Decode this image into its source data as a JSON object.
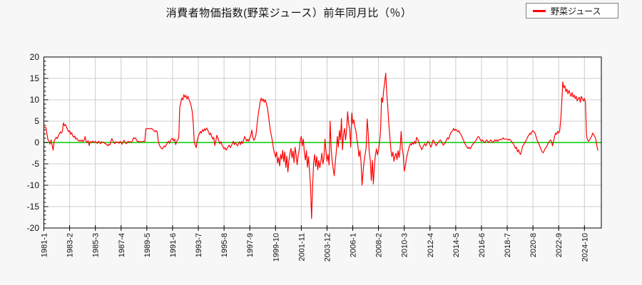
{
  "title": "消費者物価指数(野菜ジュース）前年同月比（％）",
  "legend": {
    "label": "野菜ジュース"
  },
  "colors": {
    "series": "#ff0000",
    "zero_line": "#00cc00",
    "grid": "#cccccc",
    "plot_bg": "#ffffff",
    "page_bg": "#f7f7f7",
    "border": "#000000",
    "legend_border": "#808080",
    "text": "#111111"
  },
  "chart_data": {
    "type": "line",
    "title": "消費者物価指数(野菜ジュース）前年同月比（％）",
    "series_name": "野菜ジュース",
    "unit": "%",
    "x_start": "1981-1",
    "x_end": "2025-11",
    "x_frequency": "monthly",
    "x_tick_interval_months": 25,
    "x_tick_labels": [
      "1981-1",
      "1983-2",
      "1985-3",
      "1987-4",
      "1989-5",
      "1991-6",
      "1993-7",
      "1995-8",
      "1997-9",
      "1999-10",
      "2001-11",
      "2003-12",
      "2006-1",
      "2008-2",
      "2010-3",
      "2012-4",
      "2014-5",
      "2016-6",
      "2018-7",
      "2020-8",
      "2022-9",
      "2024-10"
    ],
    "ylim": [
      -20,
      20
    ],
    "y_ticks": [
      20,
      15,
      10,
      5,
      0,
      -5,
      -10,
      -15,
      -20
    ],
    "y_minor_tick_step": 1,
    "grid": true,
    "legend_position": "top-right",
    "values": [
      3.6,
      3.6,
      3.5,
      2.0,
      0.6,
      0.3,
      -0.4,
      0.6,
      -0.6,
      -1.8,
      0.3,
      0.8,
      1.2,
      0.9,
      1.5,
      2.0,
      2.5,
      2.2,
      2.6,
      4.6,
      3.9,
      4.2,
      3.6,
      3.0,
      2.5,
      2.8,
      1.9,
      2.3,
      1.6,
      1.2,
      1.5,
      0.8,
      1.0,
      0.6,
      0.3,
      0.5,
      0.3,
      0.6,
      0.2,
      0.5,
      1.4,
      0.3,
      0.0,
      0.4,
      -0.7,
      0.2,
      0.0,
      0.3,
      0.2,
      0.0,
      0.3,
      0.0,
      -0.2,
      0.3,
      0.1,
      -0.3,
      0.2,
      0.0,
      0.1,
      -0.2,
      -0.3,
      -0.5,
      -0.8,
      -0.4,
      -0.6,
      0.2,
      0.9,
      0.4,
      0.0,
      -0.3,
      0.2,
      0.0,
      0.1,
      -0.2,
      0.3,
      0.0,
      -0.4,
      0.2,
      0.5,
      0.0,
      -0.3,
      0.1,
      0.3,
      0.0,
      0.2,
      0.0,
      0.4,
      1.1,
      0.9,
      1.1,
      0.5,
      0.2,
      0.3,
      0.1,
      0.2,
      0.2,
      0.2,
      0.3,
      0.2,
      3.2,
      3.2,
      3.3,
      3.2,
      3.2,
      3.3,
      3.2,
      3.0,
      2.8,
      2.5,
      2.8,
      2.5,
      0.5,
      -0.5,
      -1.0,
      -1.3,
      -1.5,
      -1.2,
      -0.8,
      -1.0,
      -0.5,
      0.0,
      0.3,
      -0.2,
      0.5,
      0.8,
      1.0,
      0.4,
      0.8,
      -0.5,
      0.3,
      0.6,
      1.0,
      8.3,
      9.4,
      10.4,
      10.0,
      11.2,
      10.6,
      11.0,
      10.2,
      10.8,
      10.0,
      9.4,
      8.6,
      7.4,
      4.9,
      0.3,
      -0.6,
      -1.2,
      0.5,
      1.5,
      2.0,
      2.6,
      2.2,
      3.0,
      2.6,
      3.2,
      2.8,
      3.4,
      3.0,
      2.4,
      1.8,
      2.2,
      1.4,
      0.8,
      1.2,
      -0.7,
      0.4,
      1.7,
      1.0,
      0.4,
      -0.3,
      0.2,
      -0.6,
      -1.0,
      -1.5,
      -1.2,
      -1.8,
      -1.4,
      -1.0,
      -0.6,
      -1.2,
      -0.8,
      -0.3,
      0.3,
      -0.5,
      0.0,
      -0.4,
      -0.8,
      -0.3,
      0.2,
      -0.5,
      0.3,
      -0.2,
      0.5,
      1.4,
      0.8,
      0.3,
      0.8,
      0.3,
      1.0,
      1.7,
      2.9,
      1.2,
      0.5,
      1.0,
      1.8,
      4.1,
      6.2,
      7.8,
      9.4,
      10.4,
      9.7,
      10.2,
      9.4,
      10.0,
      9.2,
      8.3,
      6.5,
      4.6,
      2.8,
      1.5,
      0.3,
      -1.5,
      -2.5,
      -3.4,
      -2.2,
      -4.8,
      -3.5,
      -5.5,
      -2.8,
      -3.9,
      -1.8,
      -4.5,
      -2.2,
      -5.8,
      -3.2,
      -6.9,
      -4.2,
      -2.5,
      -1.4,
      -3.6,
      -2.0,
      -4.7,
      -1.1,
      -2.9,
      -5.2,
      -3.0,
      -1.7,
      0.6,
      1.4,
      -0.8,
      0.8,
      -2.4,
      -4.1,
      -1.9,
      -5.8,
      -3.3,
      -6.6,
      -10.5,
      -17.8,
      -10.2,
      -4.7,
      -2.8,
      -5.6,
      -3.3,
      -6.4,
      -4.2,
      -5.9,
      -4.4,
      -2.5,
      -5.0,
      -3.6,
      0.8,
      -2.2,
      -4.4,
      -2.8,
      -5.3,
      5.0,
      -1.4,
      -4.4,
      -6.1,
      -7.8,
      -4.7,
      -2.2,
      1.4,
      -1.1,
      2.8,
      0.6,
      5.6,
      -1.7,
      1.9,
      3.3,
      0.6,
      2.8,
      7.2,
      4.4,
      3.1,
      -1.1,
      6.9,
      4.4,
      5.3,
      3.6,
      2.8,
      0.8,
      -0.8,
      -3.3,
      -1.9,
      -4.4,
      -10.0,
      -6.9,
      -4.4,
      -2.8,
      -1.2,
      5.5,
      2.2,
      -2.2,
      -4.2,
      -8.9,
      -4.2,
      -9.7,
      -5.5,
      -2.9,
      -1.5,
      -2.9,
      -1.8,
      0.0,
      2.9,
      10.5,
      9.4,
      12.2,
      14.0,
      16.2,
      11.7,
      8.3,
      4.4,
      1.4,
      -1.7,
      -3.3,
      -2.2,
      -4.4,
      -3.1,
      -2.5,
      -4.0,
      -1.9,
      -3.5,
      -1.4,
      2.6,
      -1.4,
      -2.8,
      -6.7,
      -5.6,
      -3.9,
      -2.8,
      -1.7,
      -0.8,
      -0.3,
      -0.6,
      0.0,
      -0.4,
      0.3,
      -0.3,
      1.2,
      0.8,
      0.3,
      -0.6,
      -1.1,
      -1.7,
      -1.2,
      -0.6,
      -0.3,
      -0.8,
      -0.3,
      0.3,
      0.0,
      -0.6,
      -1.1,
      -0.3,
      0.6,
      0.3,
      -0.3,
      -0.8,
      -0.3,
      0.0,
      0.3,
      0.6,
      0.3,
      -0.3,
      -0.6,
      -0.3,
      0.0,
      0.6,
      1.1,
      0.8,
      1.4,
      2.2,
      2.5,
      2.8,
      3.3,
      2.8,
      3.1,
      2.8,
      2.5,
      2.8,
      2.2,
      1.9,
      1.4,
      0.8,
      0.3,
      -0.3,
      -0.8,
      -1.1,
      -1.4,
      -1.1,
      -1.5,
      -1.1,
      -0.6,
      -0.3,
      0.0,
      0.3,
      0.6,
      1.1,
      1.4,
      1.1,
      0.6,
      0.3,
      0.6,
      0.3,
      0.0,
      0.3,
      0.6,
      0.3,
      0.0,
      0.3,
      0.6,
      0.3,
      0.0,
      0.3,
      0.6,
      0.3,
      0.6,
      0.3,
      0.6,
      0.8,
      0.6,
      0.8,
      1.1,
      0.8,
      0.8,
      0.8,
      0.8,
      0.6,
      0.8,
      0.6,
      0.3,
      0.0,
      -0.3,
      -0.8,
      -1.4,
      -1.1,
      -2.2,
      -1.7,
      -2.5,
      -2.8,
      -1.9,
      -0.8,
      -0.6,
      0.0,
      0.3,
      0.8,
      1.4,
      1.7,
      2.2,
      1.9,
      2.5,
      2.8,
      2.5,
      2.2,
      1.4,
      0.6,
      0.0,
      -0.5,
      -1.1,
      -1.7,
      -2.2,
      -2.4,
      -1.9,
      -1.4,
      -1.1,
      -0.6,
      0.0,
      0.3,
      0.6,
      0.3,
      -0.8,
      0.3,
      1.4,
      2.2,
      1.9,
      2.6,
      2.2,
      2.8,
      5.3,
      9.5,
      14.2,
      12.8,
      13.3,
      11.9,
      12.5,
      11.4,
      12.2,
      11.4,
      10.8,
      11.7,
      10.6,
      11.1,
      10.3,
      10.8,
      9.7,
      10.3,
      10.6,
      9.4,
      10.8,
      10.3,
      9.7,
      10.3,
      9.4,
      1.7,
      0.6,
      0.3,
      0.6,
      1.1,
      1.4,
      2.2,
      1.9,
      1.4,
      0.8,
      -0.6,
      -1.9
    ]
  }
}
